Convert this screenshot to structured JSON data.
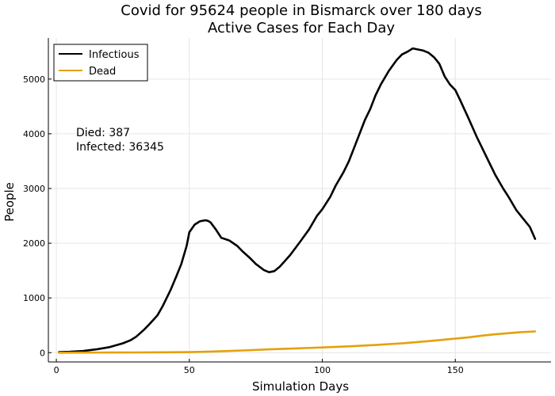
{
  "chart_data": {
    "type": "line",
    "title": "Covid for 95624 people in Bismarck over 180 days",
    "subtitle": "Active Cases for Each Day",
    "xlabel": "Simulation Days",
    "ylabel": "People",
    "xlim": [
      -3,
      186
    ],
    "ylim": [
      -170,
      5750
    ],
    "x_ticks": [
      0,
      50,
      100,
      150
    ],
    "y_ticks": [
      0,
      1000,
      2000,
      3000,
      4000,
      5000
    ],
    "grid": true,
    "legend_position": "top-left",
    "annotation_lines": [
      "Died: 387",
      "Infected: 36345"
    ],
    "series": [
      {
        "name": "Infectious",
        "color": "#000000",
        "x": [
          1,
          5,
          10,
          15,
          20,
          25,
          28,
          30,
          33,
          35,
          38,
          40,
          43,
          45,
          47,
          49,
          50,
          52,
          54,
          56,
          57,
          58,
          60,
          62,
          65,
          68,
          70,
          73,
          75,
          78,
          80,
          82,
          84,
          86,
          88,
          90,
          92,
          95,
          98,
          100,
          103,
          105,
          108,
          110,
          112,
          114,
          116,
          118,
          120,
          122,
          125,
          128,
          130,
          132,
          134,
          136,
          138,
          140,
          142,
          144,
          146,
          148,
          150,
          152,
          155,
          158,
          160,
          162,
          165,
          168,
          170,
          173,
          175,
          178,
          180
        ],
        "y": [
          10,
          15,
          30,
          60,
          100,
          170,
          230,
          290,
          420,
          520,
          680,
          850,
          1150,
          1380,
          1620,
          1950,
          2200,
          2340,
          2400,
          2420,
          2410,
          2380,
          2250,
          2100,
          2050,
          1950,
          1850,
          1720,
          1620,
          1510,
          1470,
          1490,
          1570,
          1680,
          1790,
          1920,
          2050,
          2250,
          2500,
          2620,
          2850,
          3050,
          3300,
          3500,
          3750,
          4000,
          4250,
          4450,
          4700,
          4900,
          5150,
          5350,
          5450,
          5500,
          5560,
          5540,
          5520,
          5480,
          5400,
          5280,
          5050,
          4900,
          4800,
          4600,
          4280,
          3950,
          3750,
          3550,
          3250,
          3000,
          2850,
          2600,
          2480,
          2300,
          2080
        ]
      },
      {
        "name": "Dead",
        "color": "#e5a00d",
        "x": [
          1,
          10,
          20,
          30,
          40,
          50,
          55,
          60,
          70,
          80,
          90,
          100,
          110,
          120,
          130,
          140,
          150,
          155,
          160,
          165,
          170,
          175,
          180
        ],
        "y": [
          0,
          1,
          2,
          4,
          6,
          10,
          15,
          22,
          40,
          60,
          78,
          95,
          115,
          140,
          170,
          210,
          255,
          280,
          310,
          335,
          355,
          375,
          387
        ]
      }
    ]
  }
}
